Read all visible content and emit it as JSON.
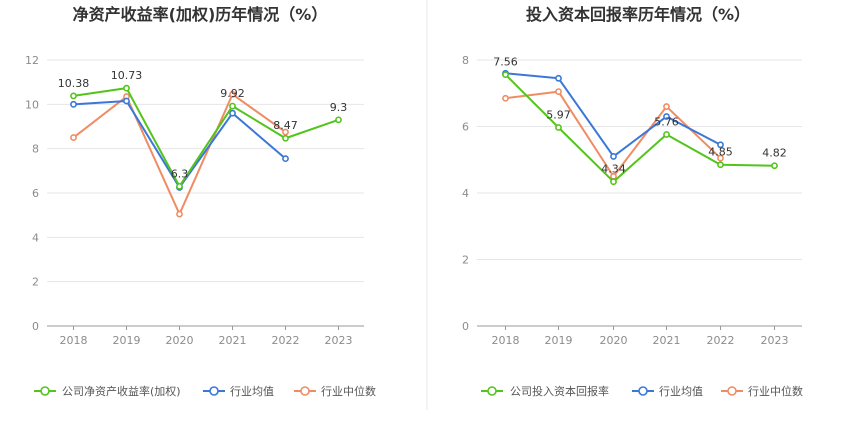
{
  "colors": {
    "company": "#52c41a",
    "industry_avg": "#3a78d8",
    "industry_median": "#f08c63",
    "divider": "#e8e8e8",
    "grid": "#e6e6e6",
    "axis": "#999999"
  },
  "chart_data": [
    {
      "type": "line",
      "title": "净资产收益率(加权)历年情况（%）",
      "categories": [
        "2018",
        "2019",
        "2020",
        "2021",
        "2022",
        "2023"
      ],
      "ylim": [
        0,
        12
      ],
      "yticks": [
        0,
        2,
        4,
        6,
        8,
        10,
        12
      ],
      "grid": true,
      "legend_position": "bottom",
      "series": [
        {
          "name": "公司净资产收益率(加权)",
          "color_key": "company",
          "values": [
            10.38,
            10.73,
            6.3,
            9.92,
            8.47,
            9.3
          ],
          "labels": [
            "10.38",
            "10.73",
            "6.3",
            "9.92",
            "8.47",
            "9.3"
          ]
        },
        {
          "name": "行业均值",
          "color_key": "industry_avg",
          "values": [
            10.0,
            10.15,
            6.25,
            9.6,
            7.55,
            null
          ]
        },
        {
          "name": "行业中位数",
          "color_key": "industry_median",
          "values": [
            8.5,
            10.35,
            5.05,
            10.45,
            8.75,
            null
          ]
        }
      ]
    },
    {
      "type": "line",
      "title": "投入资本回报率历年情况（%）",
      "categories": [
        "2018",
        "2019",
        "2020",
        "2021",
        "2022",
        "2023"
      ],
      "ylim": [
        0,
        8
      ],
      "yticks": [
        0,
        2,
        4,
        6,
        8
      ],
      "grid": true,
      "legend_position": "bottom",
      "series": [
        {
          "name": "公司投入资本回报率",
          "color_key": "company",
          "values": [
            7.56,
            5.97,
            4.34,
            5.76,
            4.85,
            4.82
          ],
          "labels": [
            "7.56",
            "5.97",
            "4.34",
            "5.76",
            "4.85",
            "4.82"
          ]
        },
        {
          "name": "行业均值",
          "color_key": "industry_avg",
          "values": [
            7.6,
            7.45,
            5.1,
            6.3,
            5.45,
            null
          ]
        },
        {
          "name": "行业中位数",
          "color_key": "industry_median",
          "values": [
            6.85,
            7.05,
            4.5,
            6.6,
            5.05,
            null
          ]
        }
      ]
    }
  ]
}
